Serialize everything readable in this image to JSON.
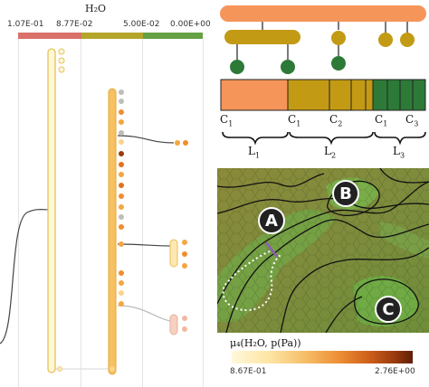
{
  "left_panel": {
    "title": "H₂O",
    "ticks": [
      "1.07E-01",
      "8.77E-02",
      "5.00E-02",
      "0.00E+00"
    ],
    "colors": {
      "red": "#d9716a",
      "olive": "#b3a52a",
      "green": "#67a145"
    }
  },
  "tree_panel": {
    "bottom_labels": [
      {
        "text": "C",
        "sub": "1"
      },
      {
        "text": "C",
        "sub": "1"
      },
      {
        "text": "C",
        "sub": "2"
      },
      {
        "text": "C",
        "sub": "1"
      },
      {
        "text": "C",
        "sub": "3"
      }
    ],
    "group_labels": [
      {
        "text": "L",
        "sub": "1"
      },
      {
        "text": "L",
        "sub": "2"
      },
      {
        "text": "L",
        "sub": "3"
      }
    ],
    "colors": {
      "orange": "#f6955a",
      "olive": "#c39a14",
      "green": "#2d7a38"
    }
  },
  "map_panel": {
    "markers": [
      "A",
      "B",
      "C"
    ]
  },
  "colorbar": {
    "label": "μ₄(H₂O, p(Pa))",
    "min": "8.67E-01",
    "max": "2.76E+00"
  }
}
